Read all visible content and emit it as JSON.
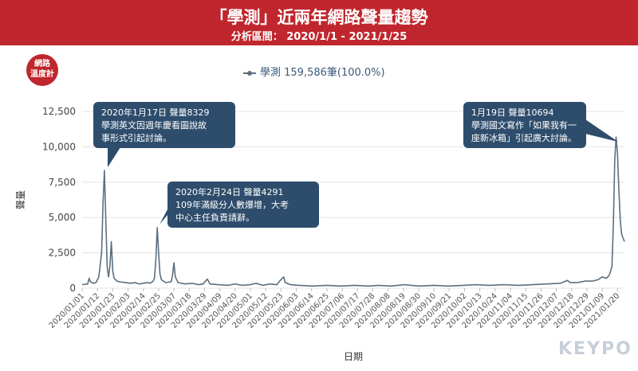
{
  "header": {
    "title": "「學測」近兩年網路聲量趨勢",
    "subtitle": "分析區間： 2020/1/1 - 2021/1/25"
  },
  "logo": {
    "line1": "網路",
    "line2": "溫度計"
  },
  "watermark": "KEYPO",
  "colors": {
    "banner": "#c0262d",
    "line": "#5b6f80",
    "callout": "#2e4d6c"
  },
  "chart_data": {
    "type": "line",
    "title": "「學測」近兩年網路聲量趨勢",
    "subtitle": "分析區間： 2020/1/1 - 2021/1/25",
    "xlabel": "日期",
    "ylabel": "聲量",
    "ylim": [
      0,
      12500
    ],
    "yticks": [
      0,
      2500,
      5000,
      7500,
      10000,
      12500
    ],
    "ytick_labels": [
      "0",
      "2,500",
      "5,000",
      "7,500",
      "10,000",
      "12,500"
    ],
    "x_range": [
      "2020/01/01",
      "2021/01/25"
    ],
    "xtick_labels": [
      "2020/01/01",
      "2020/01/12",
      "2020/01/23",
      "2020/02/03",
      "2020/02/14",
      "2020/02/25",
      "2020/03/07",
      "2020/03/18",
      "2020/03/29",
      "2020/04/09",
      "2020/04/20",
      "2020/05/01",
      "2020/05/12",
      "2020/05/23",
      "2020/06/03",
      "2020/06/14",
      "2020/06/25",
      "2020/07/06",
      "2020/07/17",
      "2020/07/28",
      "2020/08/08",
      "2020/08/19",
      "2020/08/30",
      "2020/09/10",
      "2020/09/21",
      "2020/10/02",
      "2020/10/13",
      "2020/10/24",
      "2020/11/04",
      "2020/11/15",
      "2020/11/26",
      "2020/12/07",
      "2020/12/18",
      "2020/12/29",
      "2021/01/09",
      "2021/01/20"
    ],
    "grid": true,
    "legend_position": "top-center",
    "series": [
      {
        "name": "學測 159,586筆(100.0%)",
        "points": [
          [
            "2020/01/01",
            250
          ],
          [
            "2020/01/03",
            280
          ],
          [
            "2020/01/05",
            300
          ],
          [
            "2020/01/06",
            700
          ],
          [
            "2020/01/07",
            450
          ],
          [
            "2020/01/09",
            350
          ],
          [
            "2020/01/11",
            400
          ],
          [
            "2020/01/13",
            800
          ],
          [
            "2020/01/15",
            2500
          ],
          [
            "2020/01/16",
            6000
          ],
          [
            "2020/01/17",
            8329
          ],
          [
            "2020/01/18",
            5000
          ],
          [
            "2020/01/19",
            1500
          ],
          [
            "2020/01/20",
            800
          ],
          [
            "2020/01/21",
            1600
          ],
          [
            "2020/01/22",
            3300
          ],
          [
            "2020/01/23",
            1200
          ],
          [
            "2020/01/24",
            700
          ],
          [
            "2020/01/26",
            500
          ],
          [
            "2020/01/28",
            450
          ],
          [
            "2020/02/01",
            400
          ],
          [
            "2020/02/05",
            350
          ],
          [
            "2020/02/08",
            400
          ],
          [
            "2020/02/11",
            300
          ],
          [
            "2020/02/14",
            350
          ],
          [
            "2020/02/17",
            400
          ],
          [
            "2020/02/19",
            350
          ],
          [
            "2020/02/21",
            500
          ],
          [
            "2020/02/22",
            700
          ],
          [
            "2020/02/23",
            2000
          ],
          [
            "2020/02/24",
            4291
          ],
          [
            "2020/02/25",
            2500
          ],
          [
            "2020/02/26",
            1000
          ],
          [
            "2020/02/27",
            600
          ],
          [
            "2020/03/01",
            400
          ],
          [
            "2020/03/05",
            450
          ],
          [
            "2020/03/06",
            900
          ],
          [
            "2020/03/07",
            1800
          ],
          [
            "2020/03/08",
            800
          ],
          [
            "2020/03/10",
            400
          ],
          [
            "2020/03/15",
            300
          ],
          [
            "2020/03/20",
            350
          ],
          [
            "2020/03/25",
            250
          ],
          [
            "2020/03/28",
            300
          ],
          [
            "2020/03/31",
            650
          ],
          [
            "2020/04/02",
            300
          ],
          [
            "2020/04/08",
            250
          ],
          [
            "2020/04/15",
            200
          ],
          [
            "2020/04/20",
            300
          ],
          [
            "2020/04/25",
            200
          ],
          [
            "2020/05/01",
            250
          ],
          [
            "2020/05/05",
            350
          ],
          [
            "2020/05/10",
            200
          ],
          [
            "2020/05/15",
            300
          ],
          [
            "2020/05/20",
            250
          ],
          [
            "2020/05/22",
            500
          ],
          [
            "2020/05/24",
            700
          ],
          [
            "2020/05/25",
            800
          ],
          [
            "2020/05/26",
            400
          ],
          [
            "2020/05/30",
            250
          ],
          [
            "2020/06/05",
            200
          ],
          [
            "2020/06/15",
            150
          ],
          [
            "2020/06/25",
            200
          ],
          [
            "2020/07/05",
            150
          ],
          [
            "2020/07/15",
            200
          ],
          [
            "2020/07/25",
            150
          ],
          [
            "2020/08/01",
            200
          ],
          [
            "2020/08/10",
            150
          ],
          [
            "2020/08/20",
            250
          ],
          [
            "2020/08/30",
            150
          ],
          [
            "2020/09/10",
            200
          ],
          [
            "2020/09/20",
            150
          ],
          [
            "2020/10/01",
            200
          ],
          [
            "2020/10/10",
            250
          ],
          [
            "2020/10/20",
            200
          ],
          [
            "2020/10/30",
            250
          ],
          [
            "2020/11/10",
            200
          ],
          [
            "2020/11/20",
            250
          ],
          [
            "2020/11/30",
            300
          ],
          [
            "2020/12/10",
            350
          ],
          [
            "2020/12/15",
            550
          ],
          [
            "2020/12/17",
            400
          ],
          [
            "2020/12/22",
            400
          ],
          [
            "2020/12/28",
            500
          ],
          [
            "2021/01/02",
            500
          ],
          [
            "2021/01/06",
            600
          ],
          [
            "2021/01/09",
            800
          ],
          [
            "2021/01/12",
            700
          ],
          [
            "2021/01/14",
            900
          ],
          [
            "2021/01/16",
            1500
          ],
          [
            "2021/01/17",
            4500
          ],
          [
            "2021/01/18",
            9000
          ],
          [
            "2021/01/19",
            10694
          ],
          [
            "2021/01/20",
            9500
          ],
          [
            "2021/01/21",
            7000
          ],
          [
            "2021/01/22",
            4800
          ],
          [
            "2021/01/23",
            3800
          ],
          [
            "2021/01/25",
            3300
          ]
        ]
      }
    ],
    "annotations": [
      {
        "x": "2020/01/17",
        "y": 8329,
        "lines": [
          "2020年1月17日 聲量8329",
          "學測英文因週年慶看圖說故",
          "事形式引起討論。"
        ]
      },
      {
        "x": "2020/02/24",
        "y": 4291,
        "lines": [
          "2020年2月24日 聲量4291",
          "109年滿級分人數爆增，大考",
          "中心主任負責請辭。"
        ]
      },
      {
        "x": "2021/01/19",
        "y": 10694,
        "lines": [
          "1月19日 聲量10694",
          "學測國文寫作「如果我有一",
          "座新冰箱」引起廣大討論。"
        ]
      }
    ]
  }
}
